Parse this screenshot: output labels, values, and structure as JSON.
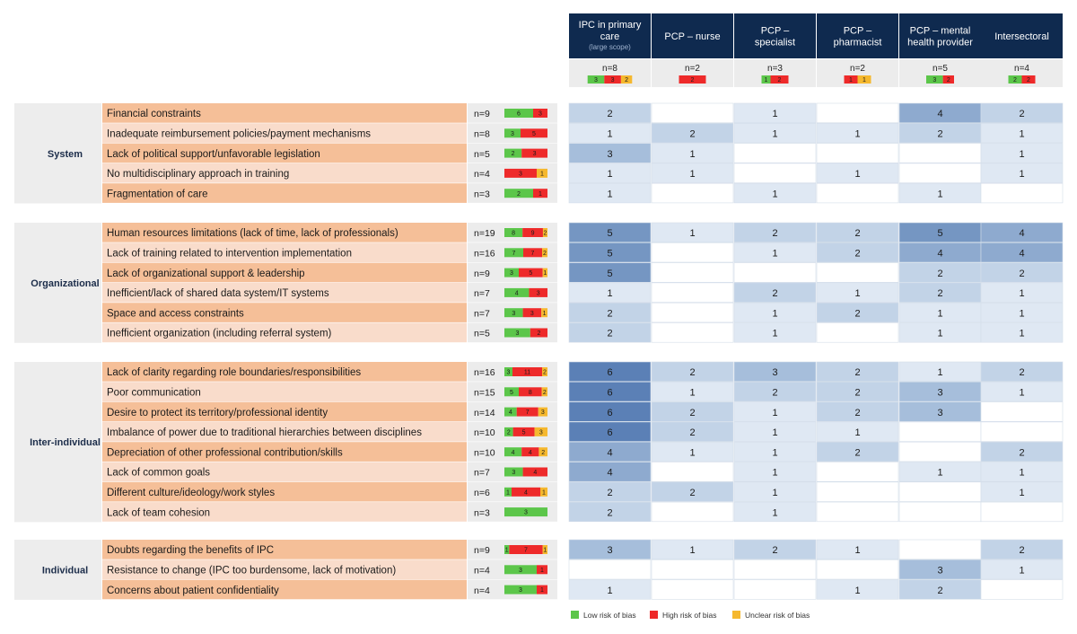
{
  "chart_data": {
    "type": "table",
    "title": "",
    "columns": [
      {
        "label_lines": [
          "IPC in primary",
          "care"
        ],
        "sub": "(large scope)",
        "n": "n=8",
        "bias": [
          3,
          3,
          2
        ]
      },
      {
        "label_lines": [
          "PCP – nurse"
        ],
        "sub": "",
        "n": "n=2",
        "bias": [
          0,
          2,
          0
        ]
      },
      {
        "label_lines": [
          "PCP –",
          "specialist"
        ],
        "sub": "",
        "n": "n=3",
        "bias": [
          1,
          2,
          0
        ]
      },
      {
        "label_lines": [
          "PCP –",
          "pharmacist"
        ],
        "sub": "",
        "n": "n=2",
        "bias": [
          0,
          1,
          1
        ]
      },
      {
        "label_lines": [
          "PCP – mental",
          "health provider"
        ],
        "sub": "",
        "n": "n=5",
        "bias": [
          3,
          2,
          0
        ]
      },
      {
        "label_lines": [
          "Intersectoral"
        ],
        "sub": "",
        "n": "n=4",
        "bias": [
          2,
          2,
          0
        ]
      }
    ],
    "groups": [
      {
        "name": "System",
        "rows": [
          {
            "label": "Financial constraints",
            "n": "n=9",
            "bias": [
              6,
              3,
              0
            ],
            "values": [
              2,
              null,
              1,
              null,
              4,
              2
            ]
          },
          {
            "label": "Inadequate reimbursement policies/payment mechanisms",
            "n": "n=8",
            "bias": [
              3,
              5,
              0
            ],
            "values": [
              1,
              2,
              1,
              1,
              2,
              1
            ]
          },
          {
            "label": "Lack of political support/unfavorable legislation",
            "n": "n=5",
            "bias": [
              2,
              3,
              0
            ],
            "values": [
              3,
              1,
              null,
              null,
              null,
              1
            ]
          },
          {
            "label": "No multidisciplinary approach in training",
            "n": "n=4",
            "bias": [
              0,
              3,
              1
            ],
            "values": [
              1,
              1,
              null,
              1,
              null,
              1
            ]
          },
          {
            "label": "Fragmentation of care",
            "n": "n=3",
            "bias": [
              2,
              1,
              0
            ],
            "values": [
              1,
              null,
              1,
              null,
              1,
              null
            ]
          }
        ]
      },
      {
        "name": "Organizational",
        "rows": [
          {
            "label": "Human resources limitations (lack of time, lack of professionals)",
            "n": "n=19",
            "bias": [
              8,
              9,
              2
            ],
            "values": [
              5,
              1,
              2,
              2,
              5,
              4
            ]
          },
          {
            "label": "Lack of training related to intervention implementation",
            "n": "n=16",
            "bias": [
              7,
              7,
              2
            ],
            "values": [
              5,
              null,
              1,
              2,
              4,
              4
            ]
          },
          {
            "label": "Lack of organizational support & leadership",
            "n": "n=9",
            "bias": [
              3,
              5,
              1
            ],
            "values": [
              5,
              null,
              null,
              null,
              2,
              2
            ]
          },
          {
            "label": "Inefficient/lack of shared data system/IT systems",
            "n": "n=7",
            "bias": [
              4,
              3,
              0
            ],
            "values": [
              1,
              null,
              2,
              1,
              2,
              1
            ]
          },
          {
            "label": "Space and access constraints",
            "n": "n=7",
            "bias": [
              3,
              3,
              1
            ],
            "values": [
              2,
              null,
              1,
              2,
              1,
              1
            ]
          },
          {
            "label": "Inefficient organization (including referral system)",
            "n": "n=5",
            "bias": [
              3,
              2,
              0
            ],
            "values": [
              2,
              null,
              1,
              null,
              1,
              1
            ]
          }
        ]
      },
      {
        "name": "Inter-individual",
        "rows": [
          {
            "label": "Lack of clarity regarding role boundaries/responsibilities",
            "n": "n=16",
            "bias": [
              3,
              11,
              2
            ],
            "values": [
              6,
              2,
              3,
              2,
              1,
              2
            ]
          },
          {
            "label": "Poor communication",
            "n": "n=15",
            "bias": [
              5,
              8,
              2
            ],
            "values": [
              6,
              1,
              2,
              2,
              3,
              1
            ]
          },
          {
            "label": "Desire to protect its territory/professional identity",
            "n": "n=14",
            "bias": [
              4,
              7,
              3
            ],
            "values": [
              6,
              2,
              1,
              2,
              3,
              null
            ]
          },
          {
            "label": "Imbalance of power due to traditional hierarchies between disciplines",
            "n": "n=10",
            "bias": [
              2,
              5,
              3
            ],
            "values": [
              6,
              2,
              1,
              1,
              null,
              null
            ]
          },
          {
            "label": "Depreciation of other professional contribution/skills",
            "n": "n=10",
            "bias": [
              4,
              4,
              2
            ],
            "values": [
              4,
              1,
              1,
              2,
              null,
              2
            ]
          },
          {
            "label": "Lack of common goals",
            "n": "n=7",
            "bias": [
              3,
              4,
              0
            ],
            "values": [
              4,
              null,
              1,
              null,
              1,
              1
            ]
          },
          {
            "label": "Different culture/ideology/work styles",
            "n": "n=6",
            "bias": [
              1,
              4,
              1
            ],
            "values": [
              2,
              2,
              1,
              null,
              null,
              1
            ]
          },
          {
            "label": "Lack of team cohesion",
            "n": "n=3",
            "bias": [
              3,
              0,
              0
            ],
            "values": [
              2,
              null,
              1,
              null,
              null,
              null
            ]
          }
        ]
      },
      {
        "name": "Individual",
        "rows": [
          {
            "label": "Doubts regarding the benefits of IPC",
            "n": "n=9",
            "bias": [
              1,
              7,
              1
            ],
            "values": [
              3,
              1,
              2,
              1,
              null,
              2
            ]
          },
          {
            "label": "Resistance to change (IPC too burdensome, lack of motivation)",
            "n": "n=4",
            "bias": [
              3,
              1,
              0
            ],
            "values": [
              null,
              null,
              null,
              null,
              3,
              1
            ]
          },
          {
            "label": "Concerns about patient confidentiality",
            "n": "n=4",
            "bias": [
              3,
              1,
              0
            ],
            "values": [
              1,
              null,
              null,
              1,
              2,
              null
            ]
          }
        ]
      }
    ],
    "legend": [
      {
        "label": "Low risk of bias",
        "color": "#5cc64a"
      },
      {
        "label": "High risk of bias",
        "color": "#ee2a2a"
      },
      {
        "label": "Unclear risk of bias",
        "color": "#f5b82e"
      }
    ],
    "colors": {
      "header_bg": "#0f2a4f",
      "header_text": "#ffffff",
      "group_bg": "#ededed",
      "row_even": "#f5bf98",
      "row_odd": "#f9dccb",
      "n_bg": "#ececec",
      "heat_scale": [
        "#ffffff",
        "#dfe8f3",
        "#c2d3e7",
        "#a6bedb",
        "#8eaacf",
        "#7596c2",
        "#5b80b6"
      ]
    }
  }
}
